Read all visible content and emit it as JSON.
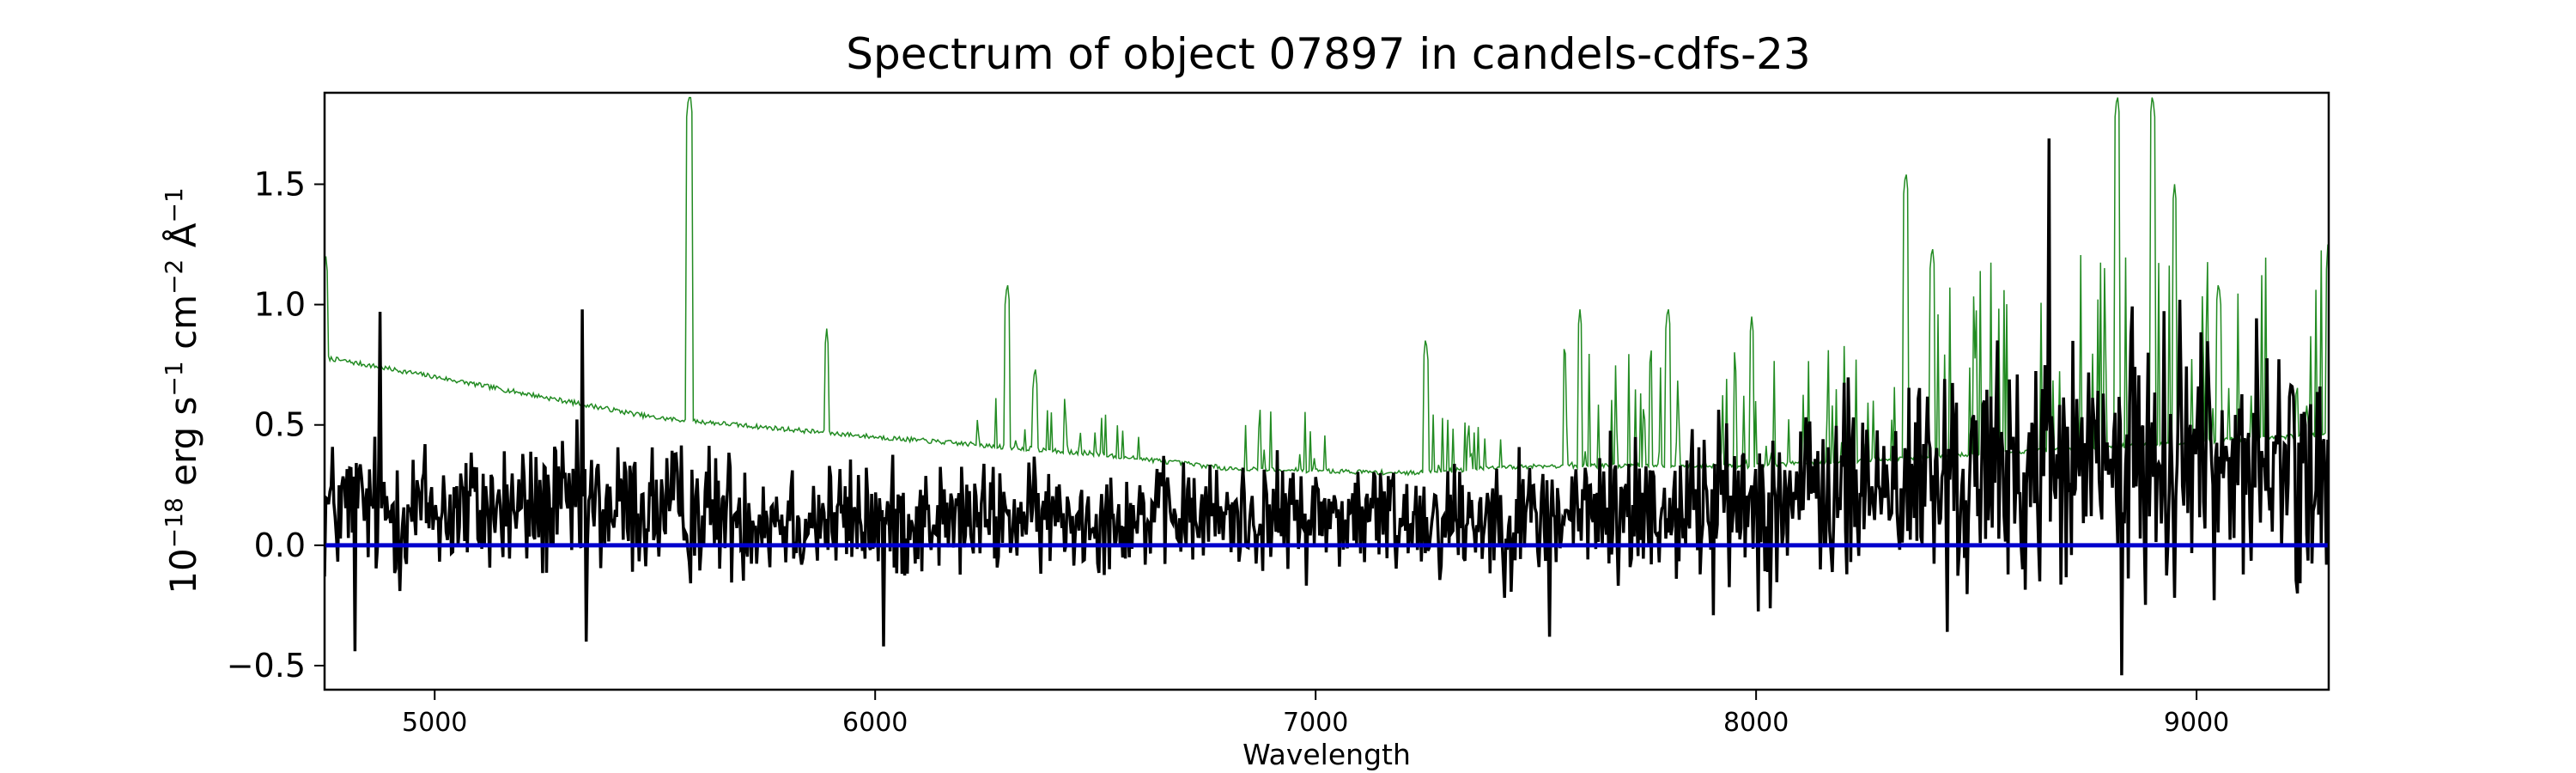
{
  "chart_data": {
    "type": "line",
    "title": "Spectrum of object 07897 in candels-cdfs-23",
    "xlabel": "Wavelength",
    "ylabel": {
      "base": "10",
      "exp": "−18",
      "unit1": " erg s",
      "exp1": "−1",
      "unit2": " cm",
      "exp2": "−2",
      "unit3": " Å",
      "exp3": "−1"
    },
    "xlim": [
      4750,
      9300
    ],
    "ylim": [
      -0.6,
      1.88
    ],
    "x_ticks": [
      5000,
      6000,
      7000,
      8000,
      9000
    ],
    "x_tick_labels": [
      "5000",
      "6000",
      "7000",
      "8000",
      "9000"
    ],
    "y_ticks": [
      -0.5,
      0.0,
      0.5,
      1.0,
      1.5
    ],
    "y_tick_labels": [
      "−0.5",
      "0.0",
      "0.5",
      "1.0",
      "1.5"
    ],
    "grid": false,
    "series": [
      {
        "role": "error-spectrum",
        "color": "#228B22",
        "baseline": [
          [
            4750,
            0.78
          ],
          [
            5000,
            0.7
          ],
          [
            5500,
            0.53
          ],
          [
            6000,
            0.45
          ],
          [
            6500,
            0.38
          ],
          [
            6800,
            0.32
          ],
          [
            7200,
            0.3
          ],
          [
            7500,
            0.33
          ],
          [
            8000,
            0.33
          ],
          [
            8500,
            0.38
          ],
          [
            9000,
            0.43
          ],
          [
            9300,
            0.46
          ]
        ],
        "peaks": [
          [
            4752,
            1.22
          ],
          [
            5577,
            1.88
          ],
          [
            5580,
            1.88
          ],
          [
            5890,
            0.9
          ],
          [
            6300,
            1.1
          ],
          [
            6363,
            0.75
          ],
          [
            7250,
            0.87
          ],
          [
            7600,
            0.98
          ],
          [
            7800,
            1.0
          ],
          [
            7990,
            0.95
          ],
          [
            8340,
            1.56
          ],
          [
            8400,
            1.25
          ],
          [
            8820,
            1.88
          ],
          [
            8900,
            1.88
          ],
          [
            8950,
            1.5
          ],
          [
            9050,
            1.1
          ],
          [
            9250,
            0.58
          ]
        ],
        "noise_regions": [
          [
            6230,
            6600,
            0.22
          ],
          [
            6830,
            7040,
            0.25
          ],
          [
            7240,
            7460,
            0.3
          ],
          [
            7560,
            8280,
            0.5
          ],
          [
            8290,
            9300,
            0.8
          ]
        ]
      },
      {
        "role": "flux",
        "color": "#000000",
        "mean": [
          [
            4750,
            0.15
          ],
          [
            5500,
            0.15
          ],
          [
            6000,
            0.1
          ],
          [
            6500,
            0.12
          ],
          [
            7000,
            0.12
          ],
          [
            7500,
            0.12
          ],
          [
            8000,
            0.18
          ],
          [
            8300,
            0.25
          ],
          [
            8700,
            0.32
          ],
          [
            9000,
            0.38
          ],
          [
            9300,
            0.3
          ]
        ],
        "amplitude": [
          [
            4750,
            0.32
          ],
          [
            5500,
            0.3
          ],
          [
            6000,
            0.25
          ],
          [
            6500,
            0.22
          ],
          [
            7000,
            0.24
          ],
          [
            7500,
            0.28
          ],
          [
            8000,
            0.38
          ],
          [
            8500,
            0.48
          ],
          [
            9000,
            0.55
          ],
          [
            9300,
            0.45
          ]
        ],
        "spikes": [
          [
            4875,
            0.97
          ],
          [
            4820,
            -0.44
          ],
          [
            5335,
            0.98
          ],
          [
            5345,
            -0.4
          ],
          [
            6020,
            -0.42
          ],
          [
            7530,
            -0.38
          ],
          [
            8435,
            -0.36
          ],
          [
            8665,
            1.69
          ],
          [
            8830,
            -0.54
          ],
          [
            8962,
            1.02
          ],
          [
            9230,
            -0.2
          ]
        ]
      },
      {
        "role": "model",
        "color": "#0000CD",
        "points": [
          [
            4750,
            0.0
          ],
          [
            9300,
            0.0
          ]
        ]
      }
    ]
  }
}
